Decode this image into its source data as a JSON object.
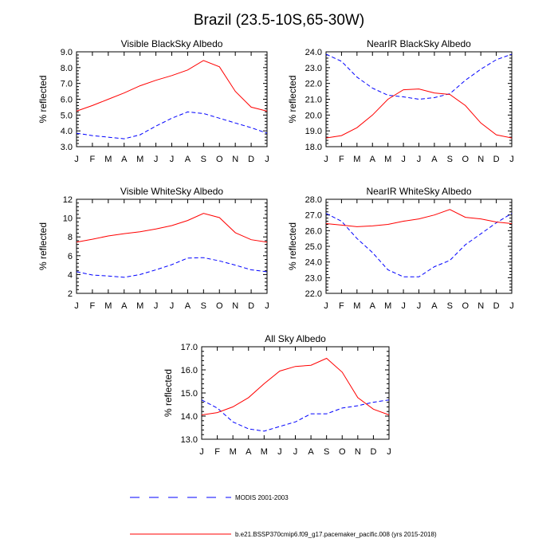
{
  "figure": {
    "title": "Brazil (23.5-10S,65-30W)"
  },
  "legend": {
    "modis_label": "MODIS 2001-2003",
    "model_label": "b.e21.BSSP370cmip6.f09_g17.pacemaker_pacific.008 (yrs 2015-2018)"
  },
  "colors": {
    "modis": "#0000ff",
    "model": "#ff0000",
    "axis": "#000000"
  },
  "chart_data": [
    {
      "type": "line",
      "title": "Visible BlackSky Albedo",
      "ylabel": "% reflected",
      "xlabel": "",
      "categories": [
        "J",
        "F",
        "M",
        "A",
        "M",
        "J",
        "J",
        "A",
        "S",
        "O",
        "N",
        "D",
        "J"
      ],
      "ylim": [
        3.0,
        9.0
      ],
      "yticks": [
        "3.0",
        "4.0",
        "5.0",
        "6.0",
        "7.0",
        "8.0",
        "9.0"
      ],
      "series": [
        {
          "name": "MODIS 2001-2003",
          "style": "dashed",
          "values": [
            3.85,
            3.7,
            3.6,
            3.5,
            3.75,
            4.3,
            4.8,
            5.2,
            5.1,
            4.8,
            4.5,
            4.2,
            3.85
          ]
        },
        {
          "name": "b.e21.BSSP370cmip6.f09_g17.pacemaker_pacific.008 (yrs 2015-2018)",
          "style": "solid",
          "values": [
            5.25,
            5.6,
            6.0,
            6.4,
            6.85,
            7.2,
            7.5,
            7.85,
            8.45,
            8.05,
            6.5,
            5.5,
            5.25
          ]
        }
      ]
    },
    {
      "type": "line",
      "title": "NearIR BlackSky Albedo",
      "ylabel": "% reflected",
      "xlabel": "",
      "categories": [
        "J",
        "F",
        "M",
        "A",
        "M",
        "J",
        "J",
        "A",
        "S",
        "O",
        "N",
        "D",
        "J"
      ],
      "ylim": [
        18.0,
        24.0
      ],
      "yticks": [
        "18.0",
        "19.0",
        "20.0",
        "21.0",
        "22.0",
        "23.0",
        "24.0"
      ],
      "series": [
        {
          "name": "MODIS 2001-2003",
          "style": "dashed",
          "values": [
            23.85,
            23.4,
            22.4,
            21.7,
            21.25,
            21.15,
            21.0,
            21.1,
            21.35,
            22.2,
            22.9,
            23.5,
            23.85
          ]
        },
        {
          "name": "b.e21.BSSP370cmip6.f09_g17.pacemaker_pacific.008 (yrs 2015-2018)",
          "style": "solid",
          "values": [
            18.55,
            18.7,
            19.2,
            20.0,
            21.0,
            21.6,
            21.65,
            21.4,
            21.3,
            20.6,
            19.5,
            18.75,
            18.55
          ]
        }
      ]
    },
    {
      "type": "line",
      "title": "Visible WhiteSky Albedo",
      "ylabel": "% reflected",
      "xlabel": "",
      "categories": [
        "J",
        "F",
        "M",
        "A",
        "M",
        "J",
        "J",
        "A",
        "S",
        "O",
        "N",
        "D",
        "J"
      ],
      "ylim": [
        2,
        12
      ],
      "yticks": [
        "2",
        "4",
        "6",
        "8",
        "10",
        "12"
      ],
      "series": [
        {
          "name": "MODIS 2001-2003",
          "style": "dashed",
          "values": [
            4.3,
            3.95,
            3.85,
            3.7,
            4.0,
            4.5,
            5.05,
            5.75,
            5.8,
            5.45,
            5.0,
            4.5,
            4.3
          ]
        },
        {
          "name": "b.e21.BSSP370cmip6.f09_g17.pacemaker_pacific.008 (yrs 2015-2018)",
          "style": "solid",
          "values": [
            7.45,
            7.75,
            8.1,
            8.35,
            8.55,
            8.85,
            9.2,
            9.75,
            10.5,
            10.05,
            8.45,
            7.7,
            7.45
          ]
        }
      ]
    },
    {
      "type": "line",
      "title": "NearIR WhiteSky Albedo",
      "ylabel": "% reflected",
      "xlabel": "",
      "categories": [
        "J",
        "F",
        "M",
        "A",
        "M",
        "J",
        "J",
        "A",
        "S",
        "O",
        "N",
        "D",
        "J"
      ],
      "ylim": [
        22.0,
        28.0
      ],
      "yticks": [
        "22.0",
        "23.0",
        "24.0",
        "25.0",
        "26.0",
        "27.0",
        "28.0"
      ],
      "series": [
        {
          "name": "MODIS 2001-2003",
          "style": "dashed",
          "values": [
            27.1,
            26.6,
            25.5,
            24.6,
            23.5,
            23.05,
            23.05,
            23.7,
            24.1,
            25.1,
            25.8,
            26.5,
            27.1
          ]
        },
        {
          "name": "b.e21.BSSP370cmip6.f09_g17.pacemaker_pacific.008 (yrs 2015-2018)",
          "style": "solid",
          "values": [
            26.45,
            26.35,
            26.25,
            26.3,
            26.4,
            26.6,
            26.75,
            27.0,
            27.35,
            26.85,
            26.75,
            26.55,
            26.45
          ]
        }
      ]
    },
    {
      "type": "line",
      "title": "All Sky Albedo",
      "ylabel": "% reflected",
      "xlabel": "",
      "categories": [
        "J",
        "F",
        "M",
        "A",
        "M",
        "J",
        "J",
        "A",
        "S",
        "O",
        "N",
        "D",
        "J"
      ],
      "ylim": [
        13.0,
        17.0
      ],
      "yticks": [
        "13.0",
        "14.0",
        "15.0",
        "16.0",
        "17.0"
      ],
      "series": [
        {
          "name": "MODIS 2001-2003",
          "style": "dashed",
          "values": [
            14.7,
            14.35,
            13.75,
            13.45,
            13.35,
            13.55,
            13.75,
            14.1,
            14.1,
            14.35,
            14.45,
            14.6,
            14.7
          ]
        },
        {
          "name": "b.e21.BSSP370cmip6.f09_g17.pacemaker_pacific.008 (yrs 2015-2018)",
          "style": "solid",
          "values": [
            14.05,
            14.15,
            14.4,
            14.8,
            15.4,
            15.95,
            16.15,
            16.2,
            16.5,
            15.9,
            14.8,
            14.3,
            14.05
          ]
        }
      ]
    }
  ]
}
